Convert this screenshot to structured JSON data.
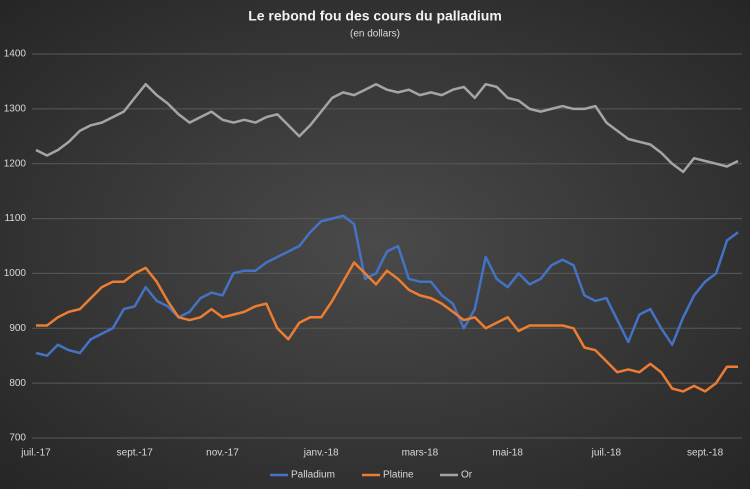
{
  "chart_data": {
    "type": "line",
    "title": "Le rebond fou des cours du palladium",
    "subtitle": "(en dollars)",
    "categories": [
      "juil.-17",
      null,
      null,
      null,
      null,
      null,
      null,
      null,
      null,
      "sept.-17",
      null,
      null,
      null,
      null,
      null,
      null,
      null,
      "nov.-17",
      null,
      null,
      null,
      null,
      null,
      null,
      null,
      null,
      "janv.-18",
      null,
      null,
      null,
      null,
      null,
      null,
      null,
      null,
      "mars-18",
      null,
      null,
      null,
      null,
      null,
      null,
      null,
      "mai-18",
      null,
      null,
      null,
      null,
      null,
      null,
      null,
      null,
      "juil.-18",
      null,
      null,
      null,
      null,
      null,
      null,
      null,
      null,
      "sept.-18",
      null,
      null,
      null
    ],
    "series": [
      {
        "name": "Palladium",
        "color": "#4472c4",
        "values": [
          855,
          850,
          870,
          860,
          855,
          880,
          890,
          900,
          935,
          940,
          975,
          950,
          940,
          920,
          930,
          955,
          965,
          960,
          1000,
          1005,
          1005,
          1020,
          1030,
          1040,
          1050,
          1075,
          1095,
          1100,
          1105,
          1090,
          990,
          1000,
          1040,
          1050,
          990,
          985,
          985,
          960,
          945,
          900,
          935,
          1030,
          990,
          975,
          1000,
          980,
          990,
          1015,
          1025,
          1015,
          960,
          950,
          955,
          915,
          875,
          925,
          935,
          900,
          870,
          920,
          960,
          985,
          1000,
          1060,
          1075
        ]
      },
      {
        "name": "Platine",
        "color": "#ed7d31",
        "values": [
          905,
          905,
          920,
          930,
          935,
          955,
          975,
          985,
          985,
          1000,
          1010,
          985,
          950,
          920,
          915,
          920,
          935,
          920,
          925,
          930,
          940,
          945,
          900,
          880,
          910,
          920,
          920,
          950,
          985,
          1020,
          1000,
          980,
          1005,
          990,
          970,
          960,
          955,
          945,
          930,
          915,
          920,
          900,
          910,
          920,
          895,
          905,
          905,
          905,
          905,
          900,
          865,
          860,
          840,
          820,
          825,
          820,
          835,
          820,
          790,
          785,
          795,
          785,
          800,
          830,
          830
        ]
      },
      {
        "name": "Or",
        "color": "#a5a5a5",
        "values": [
          1225,
          1215,
          1225,
          1240,
          1260,
          1270,
          1275,
          1285,
          1295,
          1320,
          1345,
          1325,
          1310,
          1290,
          1275,
          1285,
          1295,
          1280,
          1275,
          1280,
          1275,
          1285,
          1290,
          1270,
          1250,
          1270,
          1295,
          1320,
          1330,
          1325,
          1335,
          1345,
          1335,
          1330,
          1335,
          1325,
          1330,
          1325,
          1335,
          1340,
          1320,
          1345,
          1340,
          1320,
          1315,
          1300,
          1295,
          1300,
          1305,
          1300,
          1300,
          1305,
          1275,
          1260,
          1245,
          1240,
          1235,
          1220,
          1200,
          1185,
          1210,
          1205,
          1200,
          1195,
          1205
        ]
      }
    ],
    "ylim": [
      700,
      1400
    ],
    "yticks": [
      700,
      800,
      900,
      1000,
      1100,
      1200,
      1300,
      1400
    ],
    "grid": true,
    "legend": "bottom"
  }
}
